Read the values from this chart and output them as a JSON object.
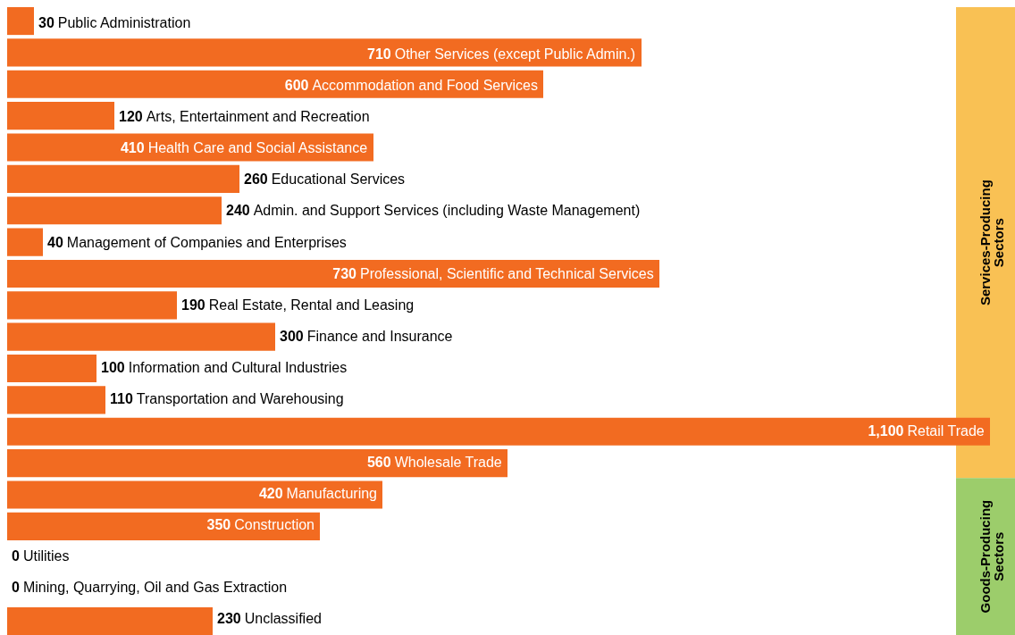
{
  "chart_data": {
    "type": "bar",
    "orientation": "horizontal",
    "categories": [
      "Public Administration",
      "Other Services (except Public Admin.)",
      "Accommodation and Food Services",
      "Arts, Entertainment and Recreation",
      "Health Care and Social Assistance",
      "Educational Services",
      "Admin. and Support Services (including Waste Management)",
      "Management of Companies and Enterprises",
      "Professional, Scientific and Technical Services",
      "Real Estate, Rental and Leasing",
      "Finance and Insurance",
      "Information and Cultural Industries",
      "Transportation and Warehousing",
      "Retail Trade",
      "Wholesale Trade",
      "Manufacturing",
      "Construction",
      "Utilities",
      "Mining, Quarrying, Oil and Gas Extraction",
      "Unclassified"
    ],
    "values": [
      30,
      710,
      600,
      120,
      410,
      260,
      240,
      40,
      730,
      190,
      300,
      100,
      110,
      1100,
      560,
      420,
      350,
      0,
      0,
      230
    ],
    "value_labels": [
      "30",
      "710",
      "600",
      "120",
      "410",
      "260",
      "240",
      "40",
      "730",
      "190",
      "300",
      "100",
      "110",
      "1,100",
      "560",
      "420",
      "350",
      "0",
      "0",
      "230"
    ],
    "color": "#f26b21",
    "annotations": [
      "Services-Producing Sectors",
      "Goods-Producing Sectors"
    ]
  }
}
